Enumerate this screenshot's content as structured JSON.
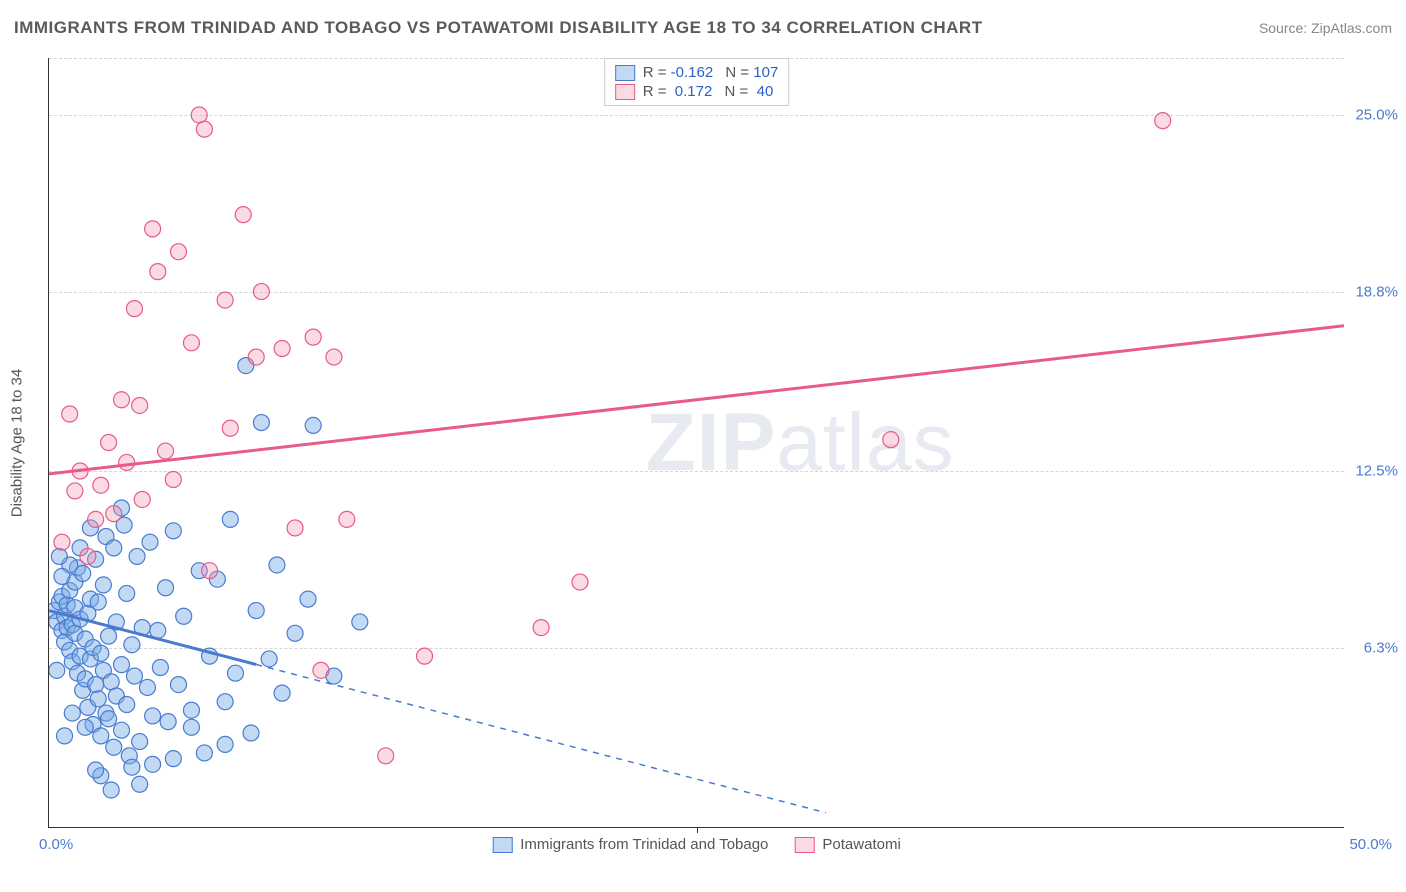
{
  "title": "IMMIGRANTS FROM TRINIDAD AND TOBAGO VS POTAWATOMI DISABILITY AGE 18 TO 34 CORRELATION CHART",
  "source": "Source: ZipAtlas.com",
  "watermark_a": "ZIP",
  "watermark_b": "atlas",
  "ylabel": "Disability Age 18 to 34",
  "chart": {
    "type": "scatter",
    "background_color": "#ffffff",
    "grid_color": "#d5d5d5",
    "xlim": [
      0,
      50
    ],
    "ylim": [
      0,
      27
    ],
    "xticks": [
      0,
      25,
      50
    ],
    "xtick_labels": [
      "0.0%",
      "",
      "50.0%"
    ],
    "ytick_values": [
      6.3,
      12.5,
      18.8,
      25.0
    ],
    "ytick_labels": [
      "6.3%",
      "12.5%",
      "18.8%",
      "25.0%"
    ],
    "label_fontsize": 15,
    "series": [
      {
        "name": "Immigrants from Trinidad and Tobago",
        "short": "blue",
        "fill": "rgba(120,170,230,0.45)",
        "stroke": "#4a7bd0",
        "marker_r": 8,
        "R": "-0.162",
        "N": "107",
        "trend": {
          "x1": 0,
          "y1": 7.6,
          "x2": 30,
          "y2": 0.5,
          "solid_until_x": 8
        },
        "points": [
          [
            0.2,
            7.6
          ],
          [
            0.3,
            7.2
          ],
          [
            0.4,
            7.9
          ],
          [
            0.5,
            8.1
          ],
          [
            0.5,
            6.9
          ],
          [
            0.6,
            7.4
          ],
          [
            0.6,
            6.5
          ],
          [
            0.7,
            7.8
          ],
          [
            0.7,
            7.0
          ],
          [
            0.8,
            8.3
          ],
          [
            0.8,
            6.2
          ],
          [
            0.9,
            7.1
          ],
          [
            0.9,
            5.8
          ],
          [
            1.0,
            8.6
          ],
          [
            1.0,
            6.8
          ],
          [
            1.0,
            7.7
          ],
          [
            1.1,
            5.4
          ],
          [
            1.1,
            9.1
          ],
          [
            1.2,
            6.0
          ],
          [
            1.2,
            7.3
          ],
          [
            1.3,
            4.8
          ],
          [
            1.3,
            8.9
          ],
          [
            1.4,
            5.2
          ],
          [
            1.4,
            6.6
          ],
          [
            1.5,
            7.5
          ],
          [
            1.5,
            4.2
          ],
          [
            1.6,
            5.9
          ],
          [
            1.6,
            8.0
          ],
          [
            1.7,
            3.6
          ],
          [
            1.7,
            6.3
          ],
          [
            1.8,
            5.0
          ],
          [
            1.8,
            9.4
          ],
          [
            1.9,
            4.5
          ],
          [
            1.9,
            7.9
          ],
          [
            2.0,
            3.2
          ],
          [
            2.0,
            6.1
          ],
          [
            2.1,
            5.5
          ],
          [
            2.1,
            8.5
          ],
          [
            2.2,
            4.0
          ],
          [
            2.2,
            10.2
          ],
          [
            2.3,
            3.8
          ],
          [
            2.3,
            6.7
          ],
          [
            2.4,
            5.1
          ],
          [
            2.5,
            2.8
          ],
          [
            2.5,
            9.8
          ],
          [
            2.6,
            4.6
          ],
          [
            2.6,
            7.2
          ],
          [
            2.8,
            3.4
          ],
          [
            2.8,
            5.7
          ],
          [
            2.9,
            10.6
          ],
          [
            3.0,
            4.3
          ],
          [
            3.0,
            8.2
          ],
          [
            3.1,
            2.5
          ],
          [
            3.2,
            6.4
          ],
          [
            3.3,
            5.3
          ],
          [
            3.4,
            9.5
          ],
          [
            3.5,
            3.0
          ],
          [
            3.6,
            7.0
          ],
          [
            3.8,
            4.9
          ],
          [
            3.9,
            10.0
          ],
          [
            4.0,
            2.2
          ],
          [
            4.2,
            6.9
          ],
          [
            4.3,
            5.6
          ],
          [
            4.5,
            8.4
          ],
          [
            4.6,
            3.7
          ],
          [
            4.8,
            10.4
          ],
          [
            5.0,
            5.0
          ],
          [
            5.2,
            7.4
          ],
          [
            5.5,
            4.1
          ],
          [
            5.8,
            9.0
          ],
          [
            6.0,
            2.6
          ],
          [
            6.2,
            6.0
          ],
          [
            6.5,
            8.7
          ],
          [
            6.8,
            4.4
          ],
          [
            7.0,
            10.8
          ],
          [
            7.2,
            5.4
          ],
          [
            7.6,
            16.2
          ],
          [
            7.8,
            3.3
          ],
          [
            8.0,
            7.6
          ],
          [
            8.2,
            14.2
          ],
          [
            8.5,
            5.9
          ],
          [
            8.8,
            9.2
          ],
          [
            9.0,
            4.7
          ],
          [
            9.5,
            6.8
          ],
          [
            10.0,
            8.0
          ],
          [
            10.2,
            14.1
          ],
          [
            11.0,
            5.3
          ],
          [
            12.0,
            7.2
          ],
          [
            2.0,
            1.8
          ],
          [
            3.5,
            1.5
          ],
          [
            2.8,
            11.2
          ],
          [
            1.6,
            10.5
          ],
          [
            1.2,
            9.8
          ],
          [
            0.8,
            9.2
          ],
          [
            0.5,
            8.8
          ],
          [
            0.4,
            9.5
          ],
          [
            1.8,
            2.0
          ],
          [
            2.4,
            1.3
          ],
          [
            4.8,
            2.4
          ],
          [
            5.5,
            3.5
          ],
          [
            6.8,
            2.9
          ],
          [
            3.2,
            2.1
          ],
          [
            4.0,
            3.9
          ],
          [
            1.4,
            3.5
          ],
          [
            0.9,
            4.0
          ],
          [
            0.6,
            3.2
          ],
          [
            0.3,
            5.5
          ]
        ]
      },
      {
        "name": "Potawatomi",
        "short": "pink",
        "fill": "rgba(240,150,175,0.35)",
        "stroke": "#e85a8a",
        "marker_r": 8,
        "R": "0.172",
        "N": "40",
        "trend": {
          "x1": 0,
          "y1": 12.4,
          "x2": 50,
          "y2": 17.6,
          "solid_until_x": 50
        },
        "points": [
          [
            0.5,
            10.0
          ],
          [
            0.8,
            14.5
          ],
          [
            1.0,
            11.8
          ],
          [
            1.2,
            12.5
          ],
          [
            1.5,
            9.5
          ],
          [
            1.8,
            10.8
          ],
          [
            2.0,
            12.0
          ],
          [
            2.3,
            13.5
          ],
          [
            2.5,
            11.0
          ],
          [
            2.8,
            15.0
          ],
          [
            3.0,
            12.8
          ],
          [
            3.3,
            18.2
          ],
          [
            3.5,
            14.8
          ],
          [
            3.6,
            11.5
          ],
          [
            4.0,
            21.0
          ],
          [
            4.2,
            19.5
          ],
          [
            4.5,
            13.2
          ],
          [
            4.8,
            12.2
          ],
          [
            5.0,
            20.2
          ],
          [
            5.5,
            17.0
          ],
          [
            5.8,
            25.0
          ],
          [
            6.2,
            9.0
          ],
          [
            6.8,
            18.5
          ],
          [
            7.0,
            14.0
          ],
          [
            7.5,
            21.5
          ],
          [
            8.0,
            16.5
          ],
          [
            8.2,
            18.8
          ],
          [
            9.0,
            16.8
          ],
          [
            9.5,
            10.5
          ],
          [
            10.2,
            17.2
          ],
          [
            10.5,
            5.5
          ],
          [
            11.0,
            16.5
          ],
          [
            11.5,
            10.8
          ],
          [
            13.0,
            2.5
          ],
          [
            14.5,
            6.0
          ],
          [
            19.0,
            7.0
          ],
          [
            20.5,
            8.6
          ],
          [
            32.5,
            13.6
          ],
          [
            43.0,
            24.8
          ],
          [
            6.0,
            24.5
          ]
        ]
      }
    ]
  }
}
